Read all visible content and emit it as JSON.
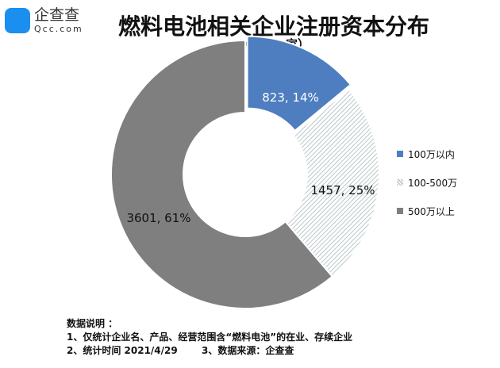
{
  "logo": {
    "cn": "企查查",
    "en": "Qcc.com"
  },
  "title": "燃料电池相关企业注册资本分布",
  "unit": "（单位：家）",
  "chart_data": {
    "type": "pie",
    "donut": true,
    "title": "燃料电池相关企业注册资本分布",
    "categories": [
      "100万以内",
      "100-500万",
      "500万以上"
    ],
    "values": [
      823,
      1457,
      3601
    ],
    "percents": [
      14,
      25,
      61
    ],
    "labels": [
      "823, 14%",
      "1457, 25%",
      "3601, 61%"
    ],
    "colors": [
      "#4e7ec0",
      "hatched",
      "#7f7f7f"
    ],
    "legend_position": "right"
  },
  "notes": {
    "heading": "数据说明 ：",
    "line1": "1、仅统计企业名、产品、经营范围含“燃料电池”的在业、存续企业",
    "line2a": "2、统计时间 2021/4/29",
    "line2b": "3、数据来源：企查查"
  }
}
